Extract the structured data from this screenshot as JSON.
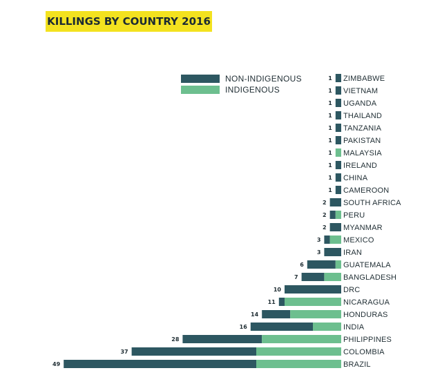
{
  "title": "KILLINGS BY COUNTRY 2016",
  "legend": {
    "non_indigenous": "NON-INDIGENOUS",
    "indigenous": "INDIGENOUS"
  },
  "colors": {
    "non_indigenous": "#2d5761",
    "indigenous": "#6dbf8f",
    "title_bg": "#f3e21f"
  },
  "chart_data": {
    "type": "bar",
    "orientation": "horizontal",
    "stacked": true,
    "title": "KILLINGS BY COUNTRY 2016",
    "categories": [
      "ZIMBABWE",
      "VIETNAM",
      "UGANDA",
      "THAILAND",
      "TANZANIA",
      "PAKISTAN",
      "MALAYSIA",
      "IRELAND",
      "CHINA",
      "CAMEROON",
      "SOUTH AFRICA",
      "PERU",
      "MYANMAR",
      "MEXICO",
      "IRAN",
      "GUATEMALA",
      "BANGLADESH",
      "DRC",
      "NICARAGUA",
      "HONDURAS",
      "INDIA",
      "PHILIPPINES",
      "COLOMBIA",
      "BRAZIL"
    ],
    "totals": [
      1,
      1,
      1,
      1,
      1,
      1,
      1,
      1,
      1,
      1,
      2,
      2,
      2,
      3,
      3,
      6,
      7,
      10,
      11,
      14,
      16,
      28,
      37,
      49
    ],
    "series": [
      {
        "name": "NON-INDIGENOUS",
        "values": [
          1,
          1,
          1,
          1,
          1,
          1,
          0,
          1,
          1,
          1,
          2,
          1,
          2,
          1,
          3,
          5,
          4,
          10,
          1,
          5,
          11,
          14,
          22,
          34
        ]
      },
      {
        "name": "INDIGENOUS",
        "values": [
          0,
          0,
          0,
          0,
          0,
          0,
          1,
          0,
          0,
          0,
          0,
          1,
          0,
          2,
          0,
          1,
          3,
          0,
          10,
          9,
          5,
          14,
          15,
          15
        ]
      }
    ],
    "legend_position": "top-left",
    "grid": false
  }
}
